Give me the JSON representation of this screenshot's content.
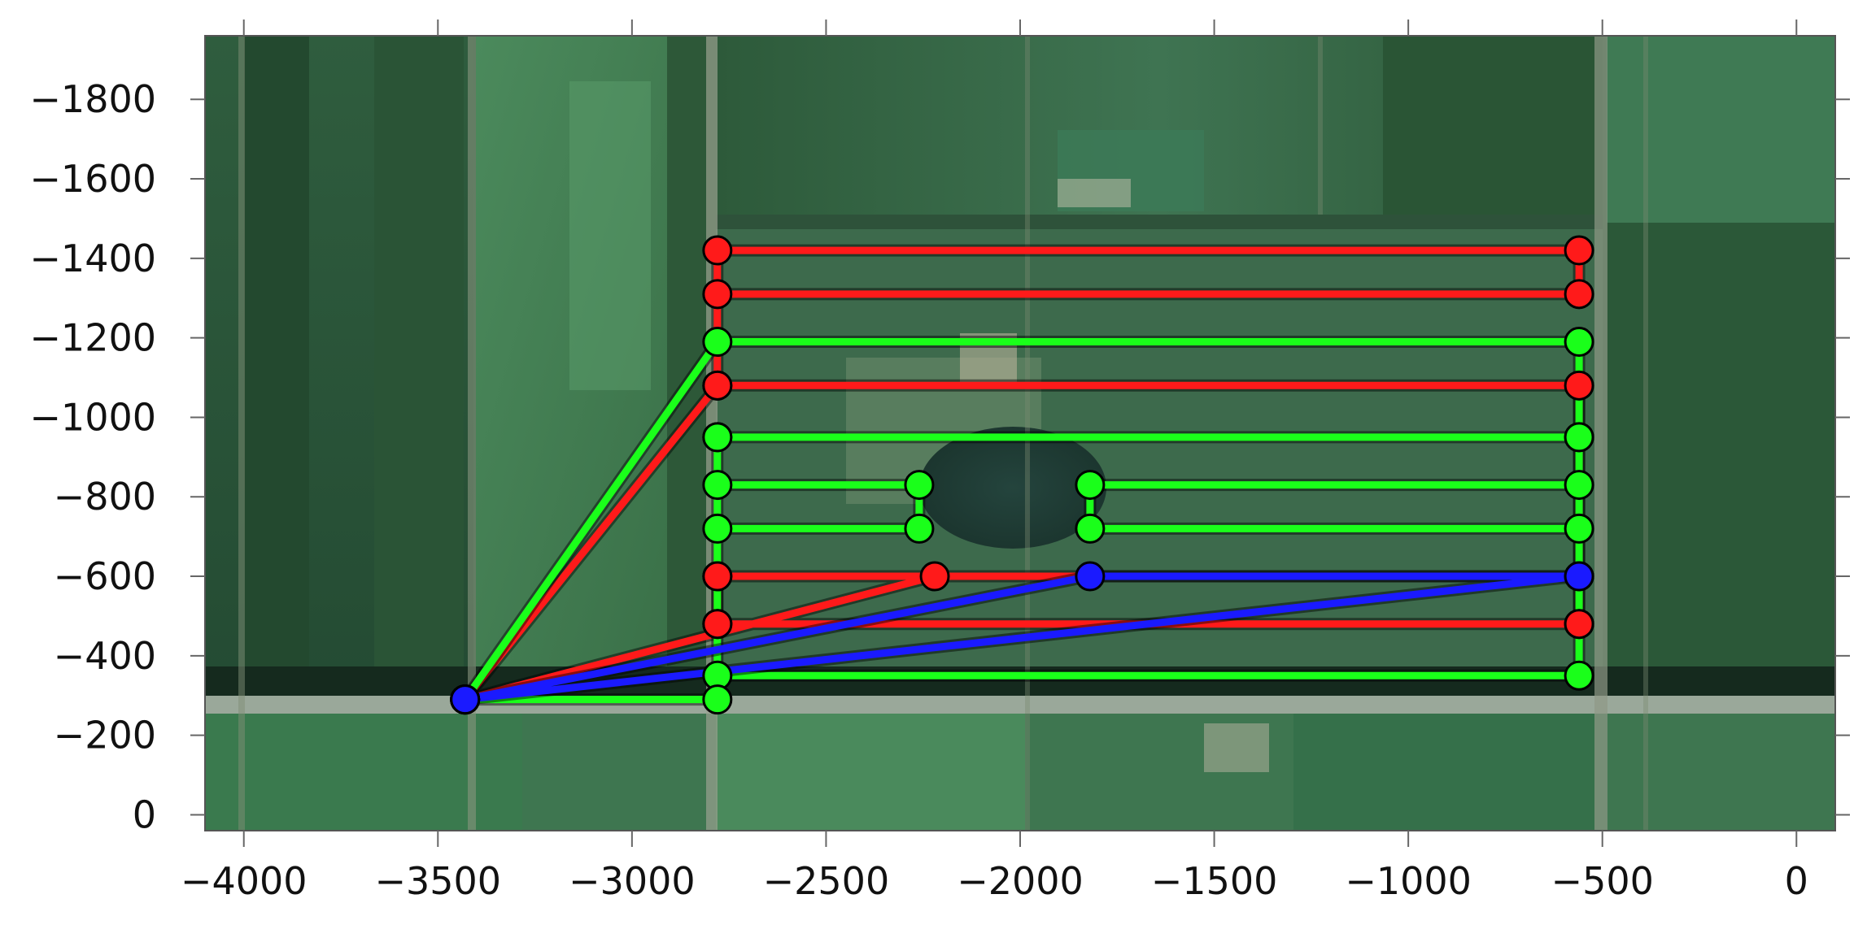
{
  "chart_data": {
    "type": "line",
    "title": "",
    "xlabel": "",
    "ylabel": "",
    "xlim": [
      -4100,
      100
    ],
    "ylim": [
      40,
      -1960
    ],
    "y_inverted": true,
    "grid": false,
    "legend": "none",
    "background": "satellite image of agricultural fields",
    "x_ticks": [
      -4000,
      -3500,
      -3000,
      -2500,
      -2000,
      -1500,
      -1000,
      -500,
      0
    ],
    "y_ticks": [
      -1800,
      -1600,
      -1400,
      -1200,
      -1000,
      -800,
      -600,
      -400,
      -200,
      0
    ],
    "x_tick_labels": [
      "−4000",
      "−3500",
      "−3000",
      "−2500",
      "−2000",
      "−1500",
      "−1000",
      "−500",
      "0"
    ],
    "y_tick_labels": [
      "−1800",
      "−1600",
      "−1400",
      "−1200",
      "−1000",
      "−800",
      "−600",
      "−400",
      "−200",
      "0"
    ],
    "depot": {
      "x": -3430,
      "y": -290,
      "color": "#1a1aff"
    },
    "series": [
      {
        "color": "#ff1a1a",
        "x": [
          -3430,
          -2780,
          -2780,
          -560,
          -560,
          -2780,
          -2780,
          -560,
          -560,
          -2780,
          -2780,
          -560,
          -560,
          -2780,
          -2780,
          -2220,
          -3430
        ],
        "y": [
          -290,
          -1080,
          -1420,
          -1420,
          -1310,
          -1310,
          -1080,
          -1080,
          -480,
          -480,
          -600,
          -600,
          -480,
          -480,
          -600,
          -600,
          -290
        ]
      },
      {
        "color": "#1aff1a",
        "x": [
          -3430,
          -2780,
          -560,
          -560,
          -2780,
          -2780,
          -2260,
          -2260,
          -2780,
          -2780,
          -560,
          -560,
          -1820,
          -1820,
          -560,
          -560,
          -2780,
          -2780,
          -3430
        ],
        "y": [
          -290,
          -1190,
          -1190,
          -950,
          -950,
          -830,
          -830,
          -720,
          -720,
          -350,
          -350,
          -830,
          -830,
          -720,
          -720,
          -950,
          -950,
          -290,
          -290
        ]
      },
      {
        "color": "#1a1aff",
        "x": [
          -3430,
          -1820,
          -560,
          -3430
        ],
        "y": [
          -290,
          -600,
          -600,
          -290
        ]
      }
    ]
  }
}
